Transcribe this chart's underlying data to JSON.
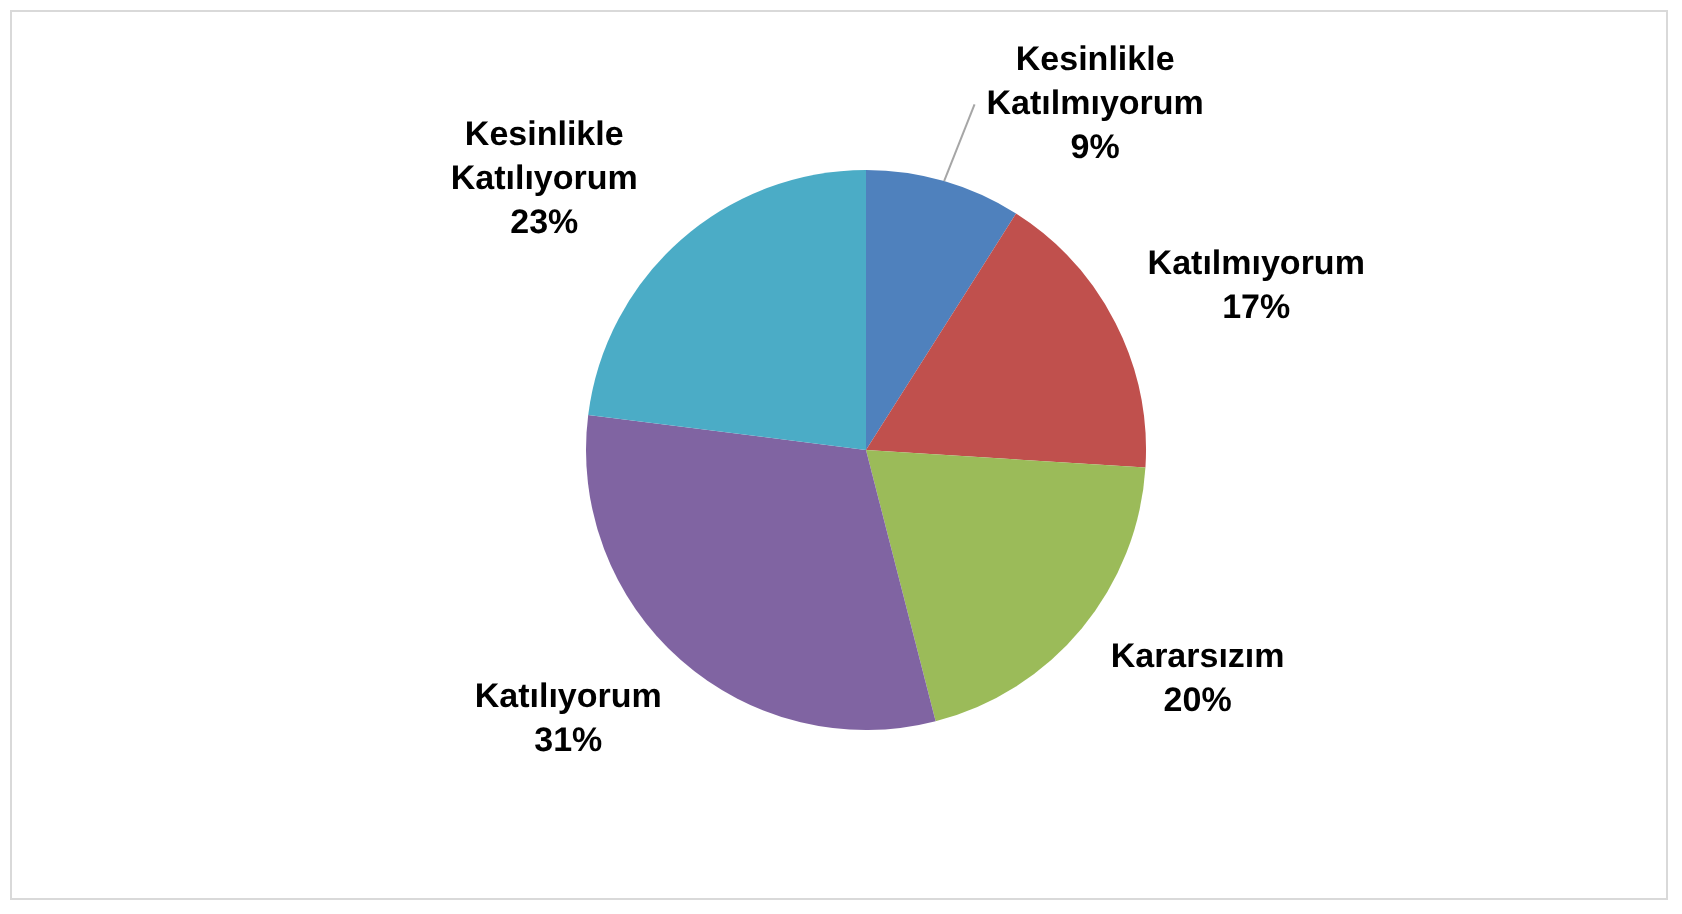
{
  "chart_data": {
    "type": "pie",
    "categories": [
      "Kesinlikle Katılmıyorum",
      "Katılmıyorum",
      "Kararsızım",
      "Katılıyorum",
      "Kesinlikle Katılıyorum"
    ],
    "values": [
      9,
      17,
      20,
      31,
      23
    ],
    "value_labels": [
      "9%",
      "17%",
      "20%",
      "31%",
      "23%"
    ],
    "colors": [
      "#4f81bd",
      "#c0504d",
      "#9bbb59",
      "#8064a2",
      "#4bacc6"
    ],
    "legend": false
  }
}
